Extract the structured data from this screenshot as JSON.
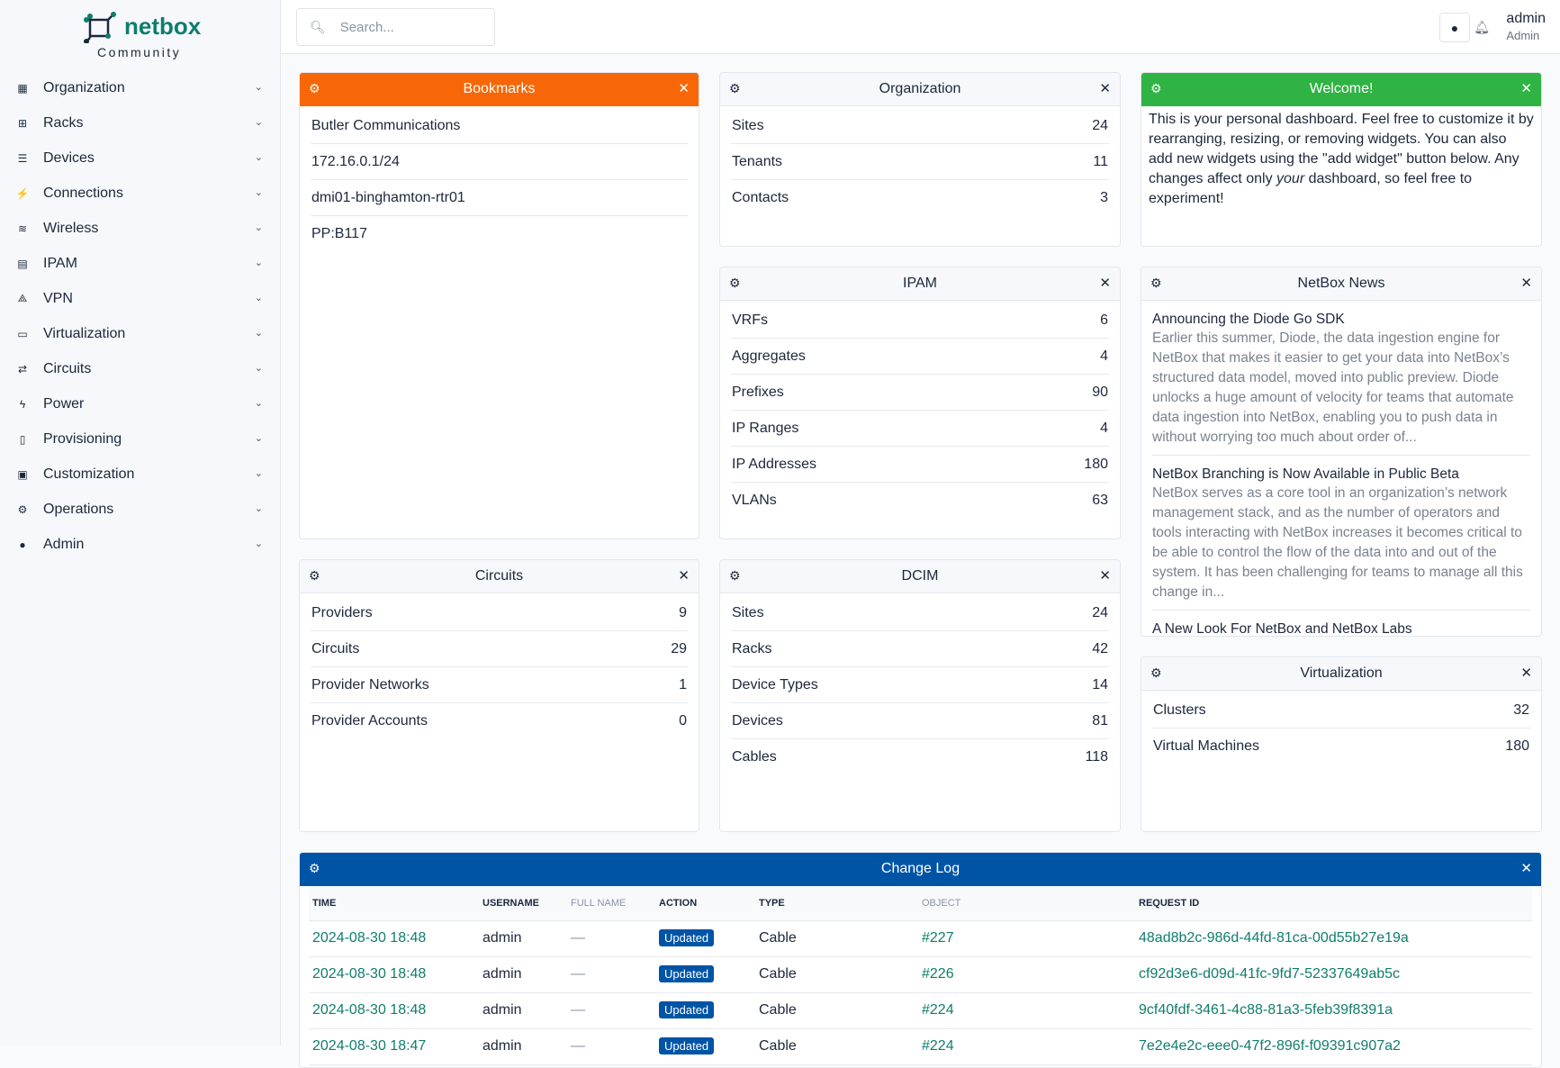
{
  "brand": {
    "name": "netbox",
    "edition": "Community",
    "color": "#0f7d6c"
  },
  "sidebar": {
    "items": [
      {
        "label": "Organization",
        "icon": "building-icon"
      },
      {
        "label": "Racks",
        "icon": "rack-icon"
      },
      {
        "label": "Devices",
        "icon": "server-icon"
      },
      {
        "label": "Connections",
        "icon": "plug-icon"
      },
      {
        "label": "Wireless",
        "icon": "wifi-icon"
      },
      {
        "label": "IPAM",
        "icon": "ip-icon"
      },
      {
        "label": "VPN",
        "icon": "vpn-icon"
      },
      {
        "label": "Virtualization",
        "icon": "monitor-icon"
      },
      {
        "label": "Circuits",
        "icon": "circuit-icon"
      },
      {
        "label": "Power",
        "icon": "bolt-icon"
      },
      {
        "label": "Provisioning",
        "icon": "file-icon"
      },
      {
        "label": "Customization",
        "icon": "toolbox-icon"
      },
      {
        "label": "Operations",
        "icon": "cogs-icon"
      },
      {
        "label": "Admin",
        "icon": "users-icon"
      }
    ]
  },
  "header": {
    "search_placeholder": "Search...",
    "user": "admin",
    "role": "Admin"
  },
  "colors": {
    "orange": "#f76707",
    "green": "#2fb344",
    "blue": "#0054a6",
    "link": "#0f7d6c"
  },
  "bookmarks": {
    "title": "Bookmarks",
    "items": [
      "Butler Communications",
      "172.16.0.1/24",
      "dmi01-binghamton-rtr01",
      "PP:B117"
    ]
  },
  "organization": {
    "title": "Organization",
    "rows": [
      {
        "label": "Sites",
        "value": "24"
      },
      {
        "label": "Tenants",
        "value": "11"
      },
      {
        "label": "Contacts",
        "value": "3"
      }
    ]
  },
  "welcome": {
    "title": "Welcome!",
    "text_before": "This is your personal dashboard. Feel free to customize it by rearranging, resizing, or removing widgets. You can also add new widgets using the \"add widget\" button below. Any changes affect only ",
    "text_em": "your",
    "text_after": " dashboard, so feel free to experiment!"
  },
  "ipam": {
    "title": "IPAM",
    "rows": [
      {
        "label": "VRFs",
        "value": "6"
      },
      {
        "label": "Aggregates",
        "value": "4"
      },
      {
        "label": "Prefixes",
        "value": "90"
      },
      {
        "label": "IP Ranges",
        "value": "4"
      },
      {
        "label": "IP Addresses",
        "value": "180"
      },
      {
        "label": "VLANs",
        "value": "63"
      }
    ]
  },
  "news": {
    "title": "NetBox News",
    "items": [
      {
        "title": "Announcing the Diode Go SDK",
        "desc": "Earlier this summer, Diode, the data ingestion engine for NetBox that makes it easier to get your data into NetBox’s structured data model, moved into public preview. Diode unlocks a huge amount of velocity for teams that automate data ingestion into NetBox, enabling you to push data in without worrying too much about order of..."
      },
      {
        "title": "NetBox Branching is Now Available in Public Beta",
        "desc": "NetBox serves as a core tool in an organization’s network management stack, and as the number of operators and tools interacting with NetBox increases it becomes critical to be able to control the flow of the data into and out of the system. It has been challenging for teams to manage all this change in..."
      },
      {
        "title": "A New Look For NetBox and NetBox Labs",
        "desc": ""
      }
    ]
  },
  "circuits": {
    "title": "Circuits",
    "rows": [
      {
        "label": "Providers",
        "value": "9"
      },
      {
        "label": "Circuits",
        "value": "29"
      },
      {
        "label": "Provider Networks",
        "value": "1"
      },
      {
        "label": "Provider Accounts",
        "value": "0"
      }
    ]
  },
  "dcim": {
    "title": "DCIM",
    "rows": [
      {
        "label": "Sites",
        "value": "24"
      },
      {
        "label": "Racks",
        "value": "42"
      },
      {
        "label": "Device Types",
        "value": "14"
      },
      {
        "label": "Devices",
        "value": "81"
      },
      {
        "label": "Cables",
        "value": "118"
      }
    ]
  },
  "virtualization": {
    "title": "Virtualization",
    "rows": [
      {
        "label": "Clusters",
        "value": "32"
      },
      {
        "label": "Virtual Machines",
        "value": "180"
      }
    ]
  },
  "changelog": {
    "title": "Change Log",
    "columns": [
      "TIME",
      "USERNAME",
      "FULL NAME",
      "ACTION",
      "TYPE",
      "OBJECT",
      "REQUEST ID"
    ],
    "rows": [
      [
        "2024-08-30 18:48",
        "admin",
        "—",
        "Updated",
        "Cable",
        "#227",
        "48ad8b2c-986d-44fd-81ca-00d55b27e19a"
      ],
      [
        "2024-08-30 18:48",
        "admin",
        "—",
        "Updated",
        "Cable",
        "#226",
        "cf92d3e6-d09d-41fc-9fd7-52337649ab5c"
      ],
      [
        "2024-08-30 18:48",
        "admin",
        "—",
        "Updated",
        "Cable",
        "#224",
        "9cf40fdf-3461-4c88-81a3-5feb39f8391a"
      ],
      [
        "2024-08-30 18:47",
        "admin",
        "—",
        "Updated",
        "Cable",
        "#224",
        "7e2e4e2c-eee0-47f2-896f-f09391c907a2"
      ]
    ]
  }
}
